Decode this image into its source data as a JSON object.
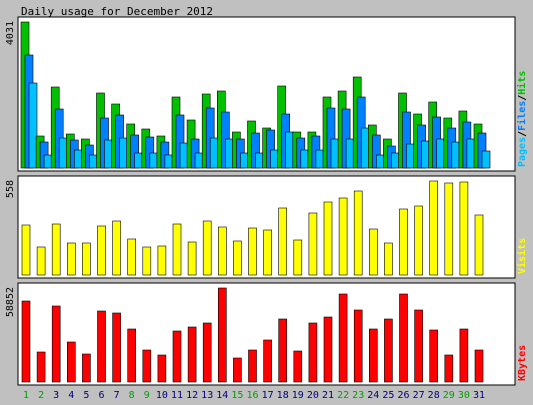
{
  "title": "Daily usage for December 2012",
  "colors": {
    "background": "#C0C0C0",
    "panel": "#FFFFFF",
    "hits": "#00C000",
    "files": "#0080FF",
    "pages": "#00C0FF",
    "visits": "#FFFF00",
    "kbytes": "#FF0000",
    "weekday_label": "#000080",
    "weekend_label": "#00A000",
    "text": "#000000"
  },
  "chart_data": [
    {
      "type": "bar",
      "panel": "hits-files-pages",
      "x": [
        "1",
        "2",
        "3",
        "4",
        "5",
        "6",
        "7",
        "8",
        "9",
        "10",
        "11",
        "12",
        "13",
        "14",
        "15",
        "16",
        "17",
        "18",
        "19",
        "20",
        "21",
        "22",
        "23",
        "24",
        "25",
        "26",
        "27",
        "28",
        "29",
        "30",
        "31"
      ],
      "weekend_days": [
        "1",
        "2",
        "8",
        "9",
        "15",
        "16",
        "22",
        "23",
        "29",
        "30"
      ],
      "y_max_label": "4031",
      "ylim": [
        0,
        4031
      ],
      "legend": {
        "parts": [
          "Pages",
          "Files",
          "Hits"
        ],
        "separator": "/"
      },
      "series": [
        {
          "name": "Hits",
          "values": [
            4031,
            897,
            2239,
            950,
            790,
            2080,
            1780,
            1224,
            1074,
            893,
            1951,
            1339,
            2056,
            2136,
            984,
            1294,
            1104,
            2271,
            994,
            1002,
            1974,
            2134,
            2520,
            1174,
            792,
            2081,
            1497,
            1814,
            1384,
            1584,
            1208
          ]
        },
        {
          "name": "Files",
          "values": [
            3129,
            726,
            1633,
            784,
            637,
            1377,
            1467,
            914,
            866,
            719,
            1457,
            794,
            1648,
            1538,
            799,
            958,
            1059,
            1493,
            842,
            876,
            1648,
            1616,
            1951,
            919,
            613,
            1552,
            1193,
            1404,
            1093,
            1266,
            974
          ]
        },
        {
          "name": "Pages",
          "values": [
            2343,
            367,
            830,
            490,
            367,
            770,
            830,
            409,
            409,
            367,
            690,
            408,
            830,
            787,
            408,
            408,
            490,
            989,
            490,
            490,
            810,
            789,
            1104,
            367,
            408,
            655,
            750,
            811,
            711,
            811,
            470
          ]
        }
      ]
    },
    {
      "type": "bar",
      "panel": "visits",
      "x": [
        "1",
        "2",
        "3",
        "4",
        "5",
        "6",
        "7",
        "8",
        "9",
        "10",
        "11",
        "12",
        "13",
        "14",
        "15",
        "16",
        "17",
        "18",
        "19",
        "20",
        "21",
        "22",
        "23",
        "24",
        "25",
        "26",
        "27",
        "28",
        "29",
        "30",
        "31"
      ],
      "y_max_label": "558",
      "ylim": [
        0,
        558
      ],
      "legend": {
        "parts": [
          "Visits"
        ]
      },
      "series": [
        {
          "name": "Visits",
          "values": [
            294,
            166,
            305,
            187,
            190,
            288,
            323,
            214,
            165,
            172,
            301,
            193,
            321,
            286,
            201,
            278,
            268,
            400,
            206,
            369,
            435,
            458,
            496,
            274,
            192,
            392,
            408,
            558,
            545,
            553,
            358
          ]
        }
      ]
    },
    {
      "type": "bar",
      "panel": "kbytes",
      "x": [
        "1",
        "2",
        "3",
        "4",
        "5",
        "6",
        "7",
        "8",
        "9",
        "10",
        "11",
        "12",
        "13",
        "14",
        "15",
        "16",
        "17",
        "18",
        "19",
        "20",
        "21",
        "22",
        "23",
        "24",
        "25",
        "26",
        "27",
        "28",
        "29",
        "30",
        "31"
      ],
      "y_max_label": "58852",
      "ylim": [
        0,
        58852
      ],
      "legend": {
        "parts": [
          "KBytes"
        ]
      },
      "series": [
        {
          "name": "KBytes",
          "values": [
            50426,
            18727,
            47844,
            24779,
            17434,
            44569,
            43275,
            33249,
            20016,
            16788,
            31955,
            34552,
            36712,
            58852,
            15065,
            20016,
            26195,
            39325,
            19405,
            36712,
            40590,
            55011,
            45000,
            33249,
            39325,
            55011,
            45000,
            32638,
            16788,
            33249,
            20016
          ]
        }
      ]
    }
  ]
}
